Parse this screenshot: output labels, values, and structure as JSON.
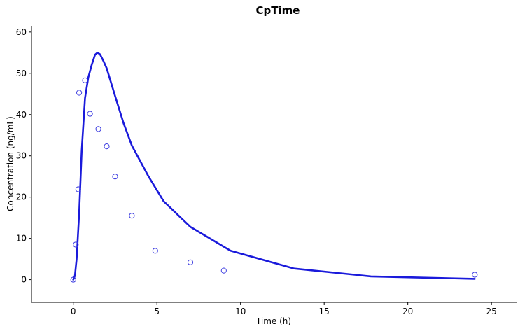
{
  "chart_data": {
    "type": "line",
    "title": "CpTime",
    "xlabel": "Time (h)",
    "ylabel": "Concentration (ng/mL)",
    "xlim": [
      -2.5,
      26.5
    ],
    "ylim": [
      -5.5,
      61.5
    ],
    "xticks": [
      0,
      5,
      10,
      15,
      20,
      25
    ],
    "yticks": [
      0,
      10,
      20,
      30,
      40,
      50,
      60
    ],
    "grid": false,
    "colors": {
      "line": "#1a1adb",
      "points": "#3c3ce0"
    },
    "series": [
      {
        "type": "line",
        "x": [
          0,
          0.1,
          0.2,
          0.35,
          0.5,
          0.7,
          0.9,
          1.1,
          1.3,
          1.45,
          1.6,
          1.8,
          2.0,
          2.5,
          3.0,
          3.5,
          4.5,
          5.4,
          7.0,
          9.4,
          13.2,
          17.8,
          24.0
        ],
        "y": [
          0,
          1.0,
          5.0,
          16.0,
          31.0,
          44.0,
          49.0,
          52.0,
          54.5,
          55.0,
          54.6,
          53.0,
          51.2,
          44.5,
          38.0,
          32.5,
          25.0,
          19.0,
          12.8,
          7.0,
          2.7,
          0.8,
          0.2
        ]
      },
      {
        "type": "scatter",
        "x": [
          0,
          0.15,
          0.3,
          0.35,
          0.7,
          1.0,
          1.5,
          2.0,
          2.5,
          3.5,
          4.9,
          7.0,
          9.0,
          24.0
        ],
        "y": [
          0,
          8.5,
          21.9,
          45.3,
          48.3,
          40.2,
          36.5,
          32.3,
          25.0,
          15.5,
          7.0,
          4.2,
          2.2,
          1.2
        ]
      }
    ]
  }
}
